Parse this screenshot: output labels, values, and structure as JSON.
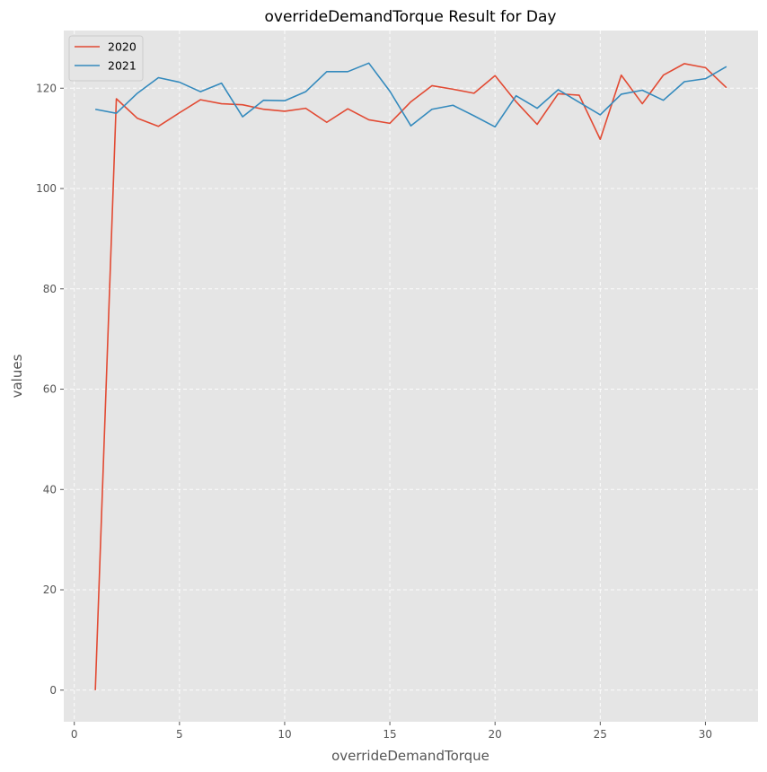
{
  "chart_data": {
    "type": "line",
    "title": "overrideDemandTorque Result for Day",
    "xlabel": "overrideDemandTorque",
    "ylabel": "values",
    "xlim": [
      -0.5,
      32.5
    ],
    "ylim": [
      -6.3,
      131.5
    ],
    "xticks": [
      0,
      5,
      10,
      15,
      20,
      25,
      30
    ],
    "yticks": [
      0,
      20,
      40,
      60,
      80,
      100,
      120
    ],
    "grid": true,
    "legend_position": "top-left",
    "x": [
      1,
      2,
      3,
      4,
      5,
      6,
      7,
      8,
      9,
      10,
      11,
      12,
      13,
      14,
      15,
      16,
      17,
      18,
      19,
      20,
      21,
      22,
      23,
      24,
      25,
      26,
      27,
      28,
      29,
      30,
      31
    ],
    "series": [
      {
        "name": "2020",
        "color": "#E24A33",
        "values": [
          0,
          117.9,
          114.0,
          112.4,
          115.1,
          117.7,
          116.9,
          116.7,
          115.8,
          115.4,
          116.0,
          113.2,
          115.9,
          113.7,
          113.0,
          117.3,
          120.5,
          119.8,
          119.0,
          122.5,
          117.3,
          112.8,
          118.9,
          118.6,
          109.8,
          122.6,
          116.9,
          122.6,
          124.9,
          124.1,
          120.1
        ]
      },
      {
        "name": "2021",
        "color": "#348ABD",
        "values": [
          115.8,
          115.0,
          119.0,
          122.1,
          121.2,
          119.3,
          121.0,
          114.3,
          117.6,
          117.5,
          119.3,
          123.3,
          123.3,
          125.0,
          119.4,
          112.5,
          115.8,
          116.6,
          114.5,
          112.3,
          118.5,
          116.0,
          119.7,
          117.2,
          114.7,
          118.8,
          119.6,
          117.6,
          121.3,
          121.9,
          124.3
        ]
      }
    ]
  }
}
